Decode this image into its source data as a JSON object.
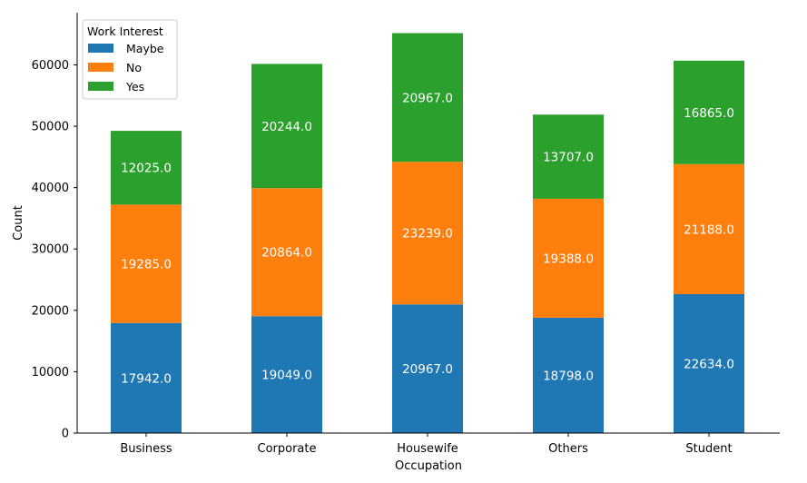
{
  "chart_data": {
    "type": "bar",
    "stacked": true,
    "title": "",
    "xlabel": "Occupation",
    "ylabel": "Count",
    "categories": [
      "Business",
      "Corporate",
      "Housewife",
      "Others",
      "Student"
    ],
    "series": [
      {
        "name": "Maybe",
        "color": "#1f77b4",
        "values": [
          17942.0,
          19049.0,
          20967.0,
          18798.0,
          22634.0
        ],
        "labels": [
          "17942.0",
          "19049.0",
          "20967.0",
          "18798.0",
          "22634.0"
        ]
      },
      {
        "name": "No",
        "color": "#ff7f0e",
        "values": [
          19285.0,
          20864.0,
          23239.0,
          19388.0,
          21188.0
        ],
        "labels": [
          "19285.0",
          "20864.0",
          "23239.0",
          "19388.0",
          "21188.0"
        ]
      },
      {
        "name": "Yes",
        "color": "#2ca02c",
        "values": [
          12025.0,
          20244.0,
          20967.0,
          13707.0,
          16865.0
        ],
        "labels": [
          "12025.0",
          "20244.0",
          "20967.0",
          "13707.0",
          "16865.0"
        ]
      }
    ],
    "ylim": [
      0,
      68500
    ],
    "yticks": [
      0,
      10000,
      20000,
      30000,
      40000,
      50000,
      60000
    ],
    "ytick_labels": [
      "0",
      "10000",
      "20000",
      "30000",
      "40000",
      "50000",
      "60000"
    ],
    "legend": {
      "title": "Work Interest",
      "placement": "top-left"
    },
    "grid": false
  }
}
